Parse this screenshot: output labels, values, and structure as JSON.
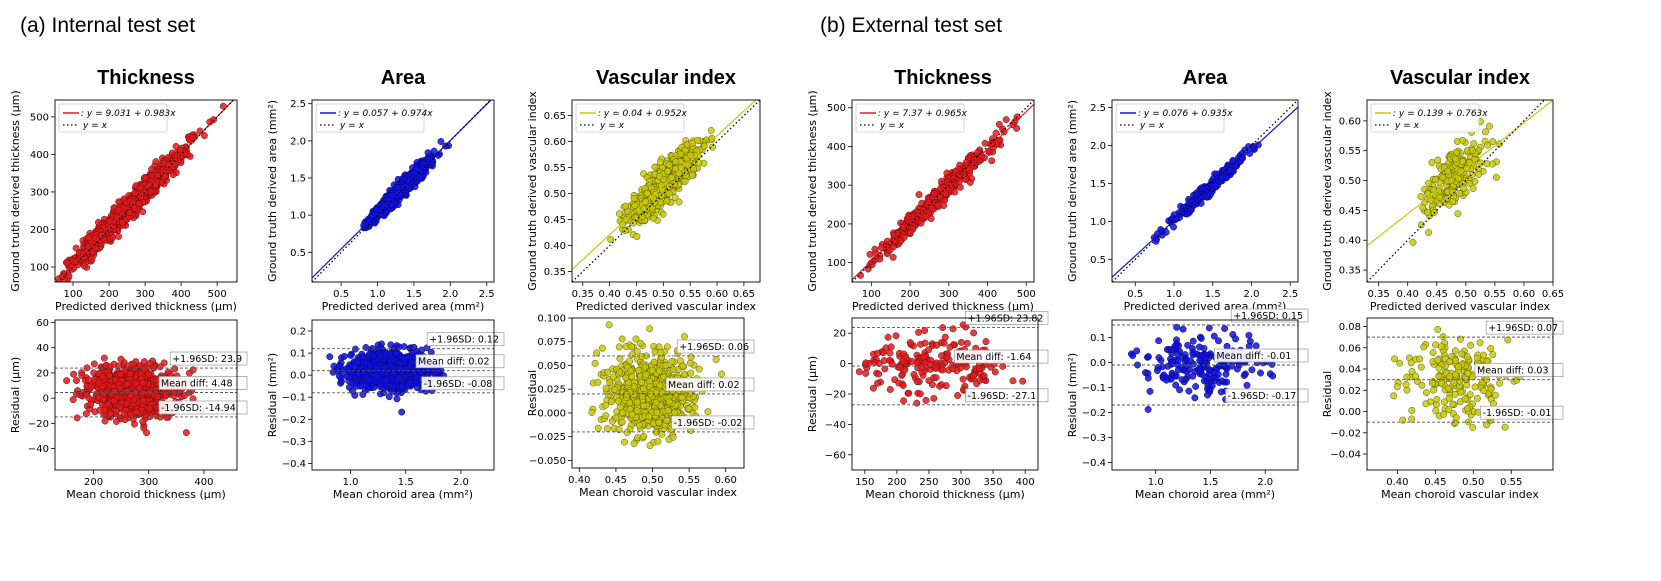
{
  "sections": [
    {
      "label": "(a) Internal test set"
    },
    {
      "label": "(b) External test set"
    }
  ],
  "chart_data": [
    {
      "type": "scatter",
      "section": "internal",
      "title": "Thickness",
      "color": "#e31a1c",
      "xlabel": "Predicted derived thickness (μm)",
      "ylabel": "Ground truth derived thickness (μm)",
      "xlim": [
        50,
        555
      ],
      "ylim": [
        60,
        545
      ],
      "xticks": [
        100,
        200,
        300,
        400,
        500
      ],
      "yticks": [
        100,
        200,
        300,
        400,
        500
      ],
      "xticklabels": [
        "100",
        "200",
        "300",
        "400",
        "500"
      ],
      "yticklabels": [
        "100",
        "200",
        "300",
        "400",
        "500"
      ],
      "fit": {
        "intercept": 9.031,
        "slope": 0.983,
        "label": ": y = 9.031 + 0.983x"
      },
      "identity_label": "y = x",
      "cloud": {
        "n": 900,
        "x_center": 250,
        "x_sd": 80,
        "x_min": 60,
        "x_max": 520,
        "resid_sd": 16,
        "seed": 11
      }
    },
    {
      "type": "scatter",
      "section": "internal",
      "title": "Area",
      "color": "#1010e0",
      "xlabel": "Predicted derived area (mm²)",
      "ylabel": "Ground truth derived area (mm²)",
      "xlim": [
        0.1,
        2.6
      ],
      "ylim": [
        0.1,
        2.55
      ],
      "xticks": [
        0.5,
        1.0,
        1.5,
        2.0,
        2.5
      ],
      "yticks": [
        0.5,
        1.0,
        1.5,
        2.0,
        2.5
      ],
      "xticklabels": [
        "0.5",
        "1.0",
        "1.5",
        "2.0",
        "2.5"
      ],
      "yticklabels": [
        "0.5",
        "1.0",
        "1.5",
        "2.0",
        "2.5"
      ],
      "fit": {
        "intercept": 0.057,
        "slope": 0.974,
        "label": ": y = 0.057 + 0.974x"
      },
      "identity_label": "y = x",
      "cloud": {
        "n": 800,
        "x_center": 1.35,
        "x_sd": 0.2,
        "x_min": 0.75,
        "x_max": 2.0,
        "resid_sd": 0.05,
        "seed": 22
      }
    },
    {
      "type": "scatter",
      "section": "internal",
      "title": "Vascular index",
      "color": "#c8c80a",
      "xlabel": "Predicted derived vascular index",
      "ylabel": "Ground truth derived vascular index",
      "xlim": [
        0.33,
        0.68
      ],
      "ylim": [
        0.33,
        0.68
      ],
      "xticks": [
        0.35,
        0.4,
        0.45,
        0.5,
        0.55,
        0.6,
        0.65
      ],
      "yticks": [
        0.35,
        0.4,
        0.45,
        0.5,
        0.55,
        0.6,
        0.65
      ],
      "xticklabels": [
        "0.35",
        "0.40",
        "0.45",
        "0.50",
        "0.55",
        "0.60",
        "0.65"
      ],
      "yticklabels": [
        "0.35",
        "0.40",
        "0.45",
        "0.50",
        "0.55",
        "0.60",
        "0.65"
      ],
      "fit": {
        "intercept": 0.04,
        "slope": 0.952,
        "label": ": y = 0.04 + 0.952x"
      },
      "identity_label": "y = x",
      "cloud": {
        "n": 700,
        "x_center": 0.5,
        "x_sd": 0.032,
        "x_min": 0.4,
        "x_max": 0.6,
        "resid_sd": 0.018,
        "seed": 33
      }
    },
    {
      "type": "scatter",
      "section": "internal",
      "title": "",
      "color": "#e31a1c",
      "xlabel": "Mean choroid thickness (μm)",
      "ylabel": "Residual (μm)",
      "xlim": [
        130,
        460
      ],
      "ylim": [
        -57,
        62
      ],
      "xticks": [
        200,
        300,
        400
      ],
      "yticks": [
        -40,
        -20,
        0,
        20,
        40,
        60
      ],
      "xticklabels": [
        "200",
        "300",
        "400"
      ],
      "yticklabels": [
        "−40",
        "−20",
        "0",
        "20",
        "40",
        "60"
      ],
      "lines": [
        {
          "y": 23.9,
          "label": "+1.96SD: 23.9"
        },
        {
          "y": 4.48,
          "label": "Mean diff: 4.48"
        },
        {
          "y": -14.94,
          "label": "-1.96SD: -14.94"
        }
      ],
      "cloud": {
        "n": 800,
        "x_center": 265,
        "x_sd": 40,
        "x_min": 140,
        "x_max": 430,
        "y_center": 4.5,
        "y_sd": 10,
        "seed": 44
      }
    },
    {
      "type": "scatter",
      "section": "internal",
      "title": "",
      "color": "#1010e0",
      "xlabel": "Mean choroid area (mm²)",
      "ylabel": "Residual (mm²)",
      "xlim": [
        0.65,
        2.3
      ],
      "ylim": [
        -0.43,
        0.25
      ],
      "xticks": [
        1.0,
        1.5,
        2.0
      ],
      "yticks": [
        -0.4,
        -0.3,
        -0.2,
        -0.1,
        0.0,
        0.1,
        0.2
      ],
      "xticklabels": [
        "1.0",
        "1.5",
        "2.0"
      ],
      "yticklabels": [
        "−0.4",
        "−0.3",
        "−0.2",
        "−0.1",
        "0.0",
        "0.1",
        "0.2"
      ],
      "lines": [
        {
          "y": 0.12,
          "label": "+1.96SD: 0.12"
        },
        {
          "y": 0.02,
          "label": "Mean diff: 0.02"
        },
        {
          "y": -0.08,
          "label": "-1.96SD: -0.08"
        }
      ],
      "cloud": {
        "n": 800,
        "x_center": 1.35,
        "x_sd": 0.18,
        "x_min": 0.8,
        "x_max": 1.95,
        "y_center": 0.02,
        "y_sd": 0.045,
        "seed": 55
      }
    },
    {
      "type": "scatter",
      "section": "internal",
      "title": "",
      "color": "#c8c80a",
      "xlabel": "Mean choroid vascular index",
      "ylabel": "Residual",
      "xlim": [
        0.39,
        0.625
      ],
      "ylim": [
        -0.058,
        0.1
      ],
      "xticks": [
        0.4,
        0.45,
        0.5,
        0.55,
        0.6
      ],
      "yticks": [
        -0.05,
        -0.025,
        0.0,
        0.025,
        0.05,
        0.075,
        0.1
      ],
      "xticklabels": [
        "0.40",
        "0.45",
        "0.50",
        "0.55",
        "0.60"
      ],
      "yticklabels": [
        "−0.050",
        "−0.025",
        "0.000",
        "0.025",
        "0.050",
        "0.075",
        "0.100"
      ],
      "lines": [
        {
          "y": 0.06,
          "label": "+1.96SD: 0.06"
        },
        {
          "y": 0.02,
          "label": "Mean diff: 0.02"
        },
        {
          "y": -0.02,
          "label": "-1.96SD: -0.02"
        }
      ],
      "cloud": {
        "n": 700,
        "x_center": 0.5,
        "x_sd": 0.03,
        "x_min": 0.41,
        "x_max": 0.6,
        "y_center": 0.02,
        "y_sd": 0.02,
        "seed": 66
      }
    },
    {
      "type": "scatter",
      "section": "external",
      "title": "Thickness",
      "color": "#e31a1c",
      "xlabel": "Predicted derived thickness (μm)",
      "ylabel": "Ground truth derived thickness (μm)",
      "xlim": [
        50,
        520
      ],
      "ylim": [
        50,
        520
      ],
      "xticks": [
        100,
        200,
        300,
        400,
        500
      ],
      "yticks": [
        100,
        200,
        300,
        400,
        500
      ],
      "xticklabels": [
        "100",
        "200",
        "300",
        "400",
        "500"
      ],
      "yticklabels": [
        "100",
        "200",
        "300",
        "400",
        "500"
      ],
      "fit": {
        "intercept": 7.37,
        "slope": 0.965,
        "label": ": y = 7.37 + 0.965x"
      },
      "identity_label": "y = x",
      "cloud": {
        "n": 350,
        "x_center": 260,
        "x_sd": 85,
        "x_min": 70,
        "x_max": 480,
        "resid_sd": 15,
        "seed": 77
      }
    },
    {
      "type": "scatter",
      "section": "external",
      "title": "Area",
      "color": "#1010e0",
      "xlabel": "Predicted derived area (mm²)",
      "ylabel": "Ground truth derived area (mm²)",
      "xlim": [
        0.2,
        2.6
      ],
      "ylim": [
        0.2,
        2.6
      ],
      "xticks": [
        0.5,
        1.0,
        1.5,
        2.0,
        2.5
      ],
      "yticks": [
        0.5,
        1.0,
        1.5,
        2.0,
        2.5
      ],
      "xticklabels": [
        "0.5",
        "1.0",
        "1.5",
        "2.0",
        "2.5"
      ],
      "yticklabels": [
        "0.5",
        "1.0",
        "1.5",
        "2.0",
        "2.5"
      ],
      "fit": {
        "intercept": 0.076,
        "slope": 0.935,
        "label": ": y = 0.076 + 0.935x"
      },
      "identity_label": "y = x",
      "cloud": {
        "n": 200,
        "x_center": 1.45,
        "x_sd": 0.3,
        "x_min": 0.65,
        "x_max": 2.1,
        "resid_sd": 0.05,
        "seed": 88
      }
    },
    {
      "type": "scatter",
      "section": "external",
      "title": "Vascular index",
      "color": "#c8c80a",
      "xlabel": "Predicted derived vascular index",
      "ylabel": "Ground truth derived vascular index",
      "xlim": [
        0.33,
        0.65
      ],
      "ylim": [
        0.33,
        0.635
      ],
      "xticks": [
        0.35,
        0.4,
        0.45,
        0.5,
        0.55,
        0.6,
        0.65
      ],
      "yticks": [
        0.35,
        0.4,
        0.45,
        0.5,
        0.55,
        0.6
      ],
      "xticklabels": [
        "0.35",
        "0.40",
        "0.45",
        "0.50",
        "0.55",
        "0.60",
        "0.65"
      ],
      "yticklabels": [
        "0.35",
        "0.40",
        "0.45",
        "0.50",
        "0.55",
        "0.60"
      ],
      "fit": {
        "intercept": 0.139,
        "slope": 0.763,
        "label": ": y = 0.139 + 0.763x"
      },
      "identity_label": "y = x",
      "cloud": {
        "n": 200,
        "x_center": 0.48,
        "x_sd": 0.03,
        "x_min": 0.38,
        "x_max": 0.57,
        "resid_sd": 0.025,
        "seed": 99
      }
    },
    {
      "type": "scatter",
      "section": "external",
      "title": "",
      "color": "#e31a1c",
      "xlabel": "Mean choroid thickness (μm)",
      "ylabel": "Residual (μm)",
      "xlim": [
        130,
        420
      ],
      "ylim": [
        -70,
        30
      ],
      "xticks": [
        150,
        200,
        250,
        300,
        350,
        400
      ],
      "yticks": [
        -60,
        -40,
        -20,
        0,
        20
      ],
      "xticklabels": [
        "150",
        "200",
        "250",
        "300",
        "350",
        "400"
      ],
      "yticklabels": [
        "−60",
        "−40",
        "−20",
        "0",
        "20"
      ],
      "lines": [
        {
          "y": 23.82,
          "label": "+1.96SD: 23.82"
        },
        {
          "y": -1.64,
          "label": "Mean diff: -1.64"
        },
        {
          "y": -27.1,
          "label": "-1.96SD: -27.1"
        }
      ],
      "cloud": {
        "n": 200,
        "x_center": 255,
        "x_sd": 55,
        "x_min": 140,
        "x_max": 410,
        "y_center": -1.6,
        "y_sd": 10,
        "seed": 111
      }
    },
    {
      "type": "scatter",
      "section": "external",
      "title": "",
      "color": "#1010e0",
      "xlabel": "Mean choroid area (mm²)",
      "ylabel": "Residual (mm²)",
      "xlim": [
        0.6,
        2.3
      ],
      "ylim": [
        -0.43,
        0.17
      ],
      "xticks": [
        1.0,
        1.5,
        2.0
      ],
      "yticks": [
        -0.4,
        -0.3,
        -0.2,
        -0.1,
        0.0,
        0.1
      ],
      "xticklabels": [
        "1.0",
        "1.5",
        "2.0"
      ],
      "yticklabels": [
        "−0.4",
        "−0.3",
        "−0.2",
        "−0.1",
        "0.0",
        "0.1"
      ],
      "lines": [
        {
          "y": 0.15,
          "label": "+1.96SD: 0.15"
        },
        {
          "y": -0.01,
          "label": "Mean diff: -0.01"
        },
        {
          "y": -0.17,
          "label": "-1.96SD: -0.17"
        }
      ],
      "cloud": {
        "n": 200,
        "x_center": 1.4,
        "x_sd": 0.3,
        "x_min": 0.7,
        "x_max": 2.1,
        "y_center": -0.01,
        "y_sd": 0.06,
        "seed": 122
      }
    },
    {
      "type": "scatter",
      "section": "external",
      "title": "",
      "color": "#c8c80a",
      "xlabel": "Mean choroid vascular index",
      "ylabel": "Residual",
      "xlim": [
        0.36,
        0.605
      ],
      "ylim": [
        -0.055,
        0.088
      ],
      "xticks": [
        0.4,
        0.45,
        0.5,
        0.55
      ],
      "yticks": [
        -0.04,
        -0.02,
        0.0,
        0.02,
        0.04,
        0.06,
        0.08
      ],
      "xticklabels": [
        "0.40",
        "0.45",
        "0.50",
        "0.55"
      ],
      "yticklabels": [
        "−0.04",
        "−0.02",
        "0.00",
        "0.02",
        "0.04",
        "0.06",
        "0.08"
      ],
      "lines": [
        {
          "y": 0.07,
          "label": "+1.96SD: 0.07"
        },
        {
          "y": 0.03,
          "label": "Mean diff: 0.03"
        },
        {
          "y": -0.01,
          "label": "-1.96SD: -0.01"
        }
      ],
      "cloud": {
        "n": 200,
        "x_center": 0.48,
        "x_sd": 0.035,
        "x_min": 0.38,
        "x_max": 0.59,
        "y_center": 0.03,
        "y_sd": 0.02,
        "seed": 133
      }
    }
  ]
}
